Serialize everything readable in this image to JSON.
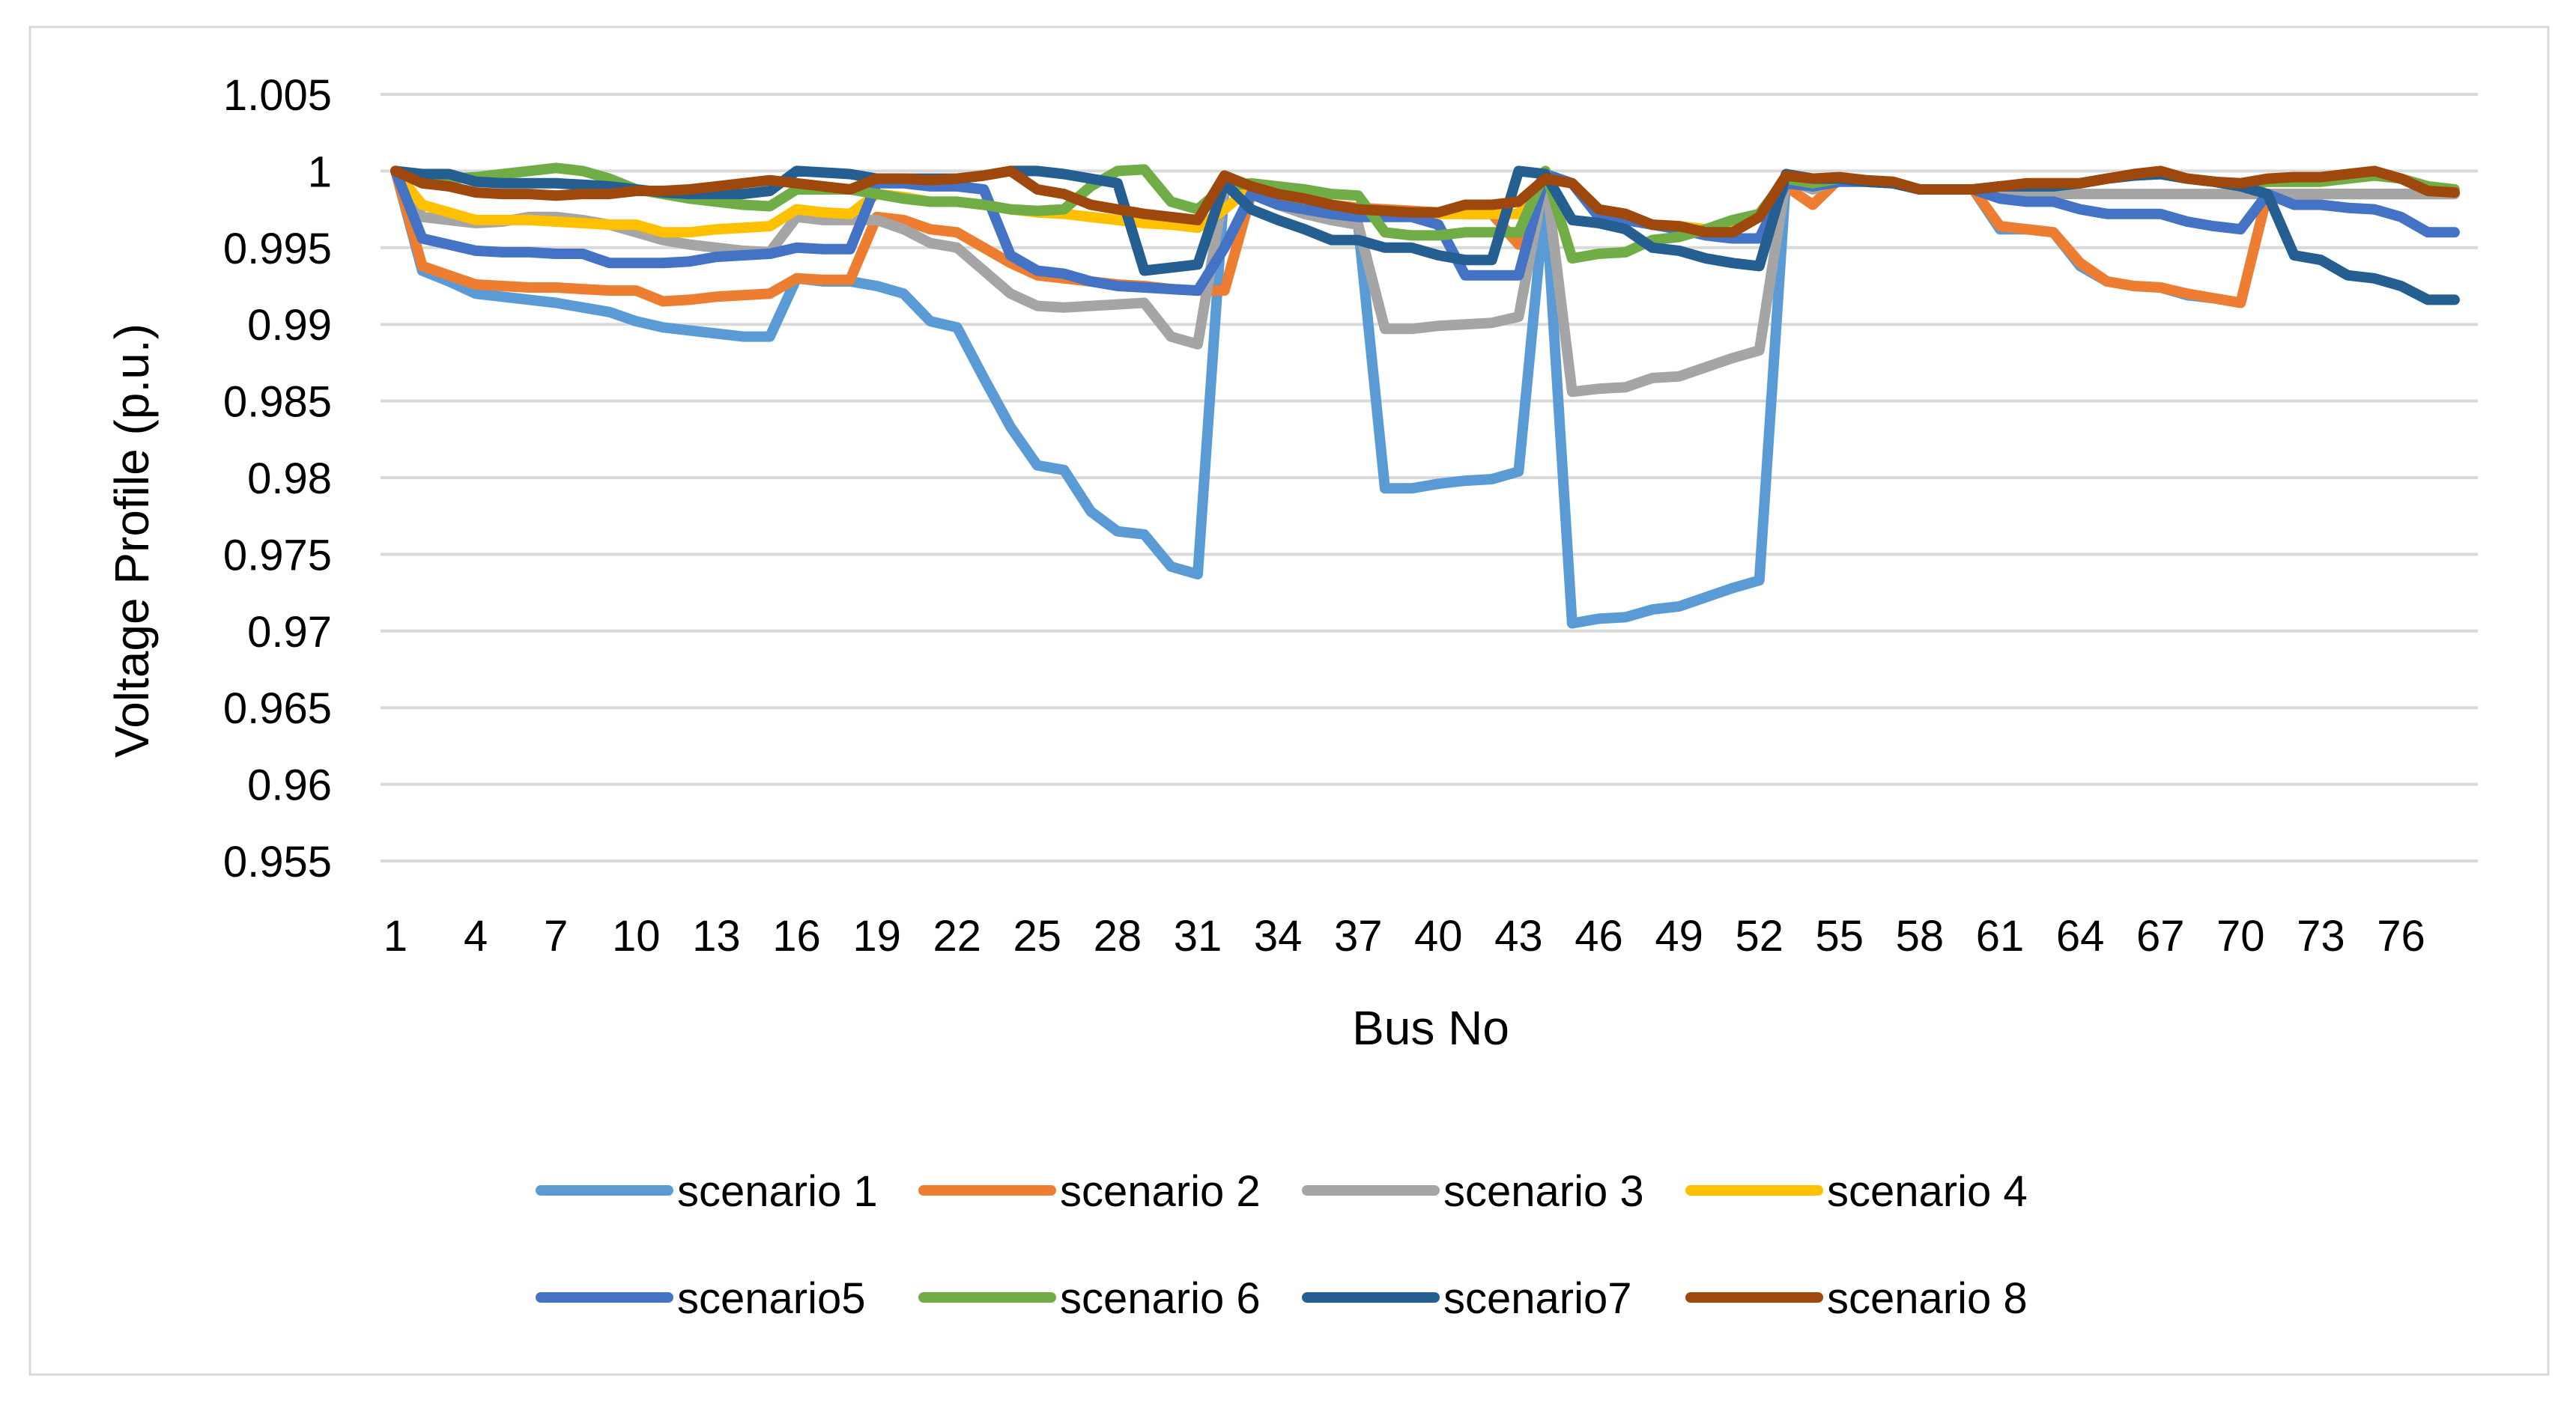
{
  "chart_data": {
    "type": "line",
    "title": "",
    "xlabel": "Bus No",
    "ylabel": "Voltage Profile (p.u.)",
    "ylim": [
      0.955,
      1.005
    ],
    "ytick_step": 0.005,
    "yticks": [
      "0.955",
      "0.96",
      "0.965",
      "0.97",
      "0.975",
      "0.98",
      "0.985",
      "0.99",
      "0.995",
      "1",
      "1.005"
    ],
    "xticks": [
      "1",
      "4",
      "7",
      "10",
      "13",
      "16",
      "19",
      "22",
      "25",
      "28",
      "31",
      "34",
      "37",
      "40",
      "43",
      "46",
      "49",
      "52",
      "55",
      "58",
      "61",
      "64",
      "67",
      "70",
      "73",
      "76"
    ],
    "x_count": 78,
    "grid": true,
    "legend_position": "bottom",
    "series": [
      {
        "name": "scenario 1",
        "color": "#5B9BD5",
        "values": [
          1.0,
          0.9935,
          0.9928,
          0.992,
          0.9918,
          0.9916,
          0.9914,
          0.9911,
          0.9908,
          0.9902,
          0.9898,
          0.9896,
          0.9894,
          0.9892,
          0.9892,
          0.993,
          0.9928,
          0.9928,
          0.9925,
          0.992,
          0.9902,
          0.9898,
          0.9865,
          0.9833,
          0.9808,
          0.9805,
          0.9778,
          0.9765,
          0.9763,
          0.9742,
          0.9737,
          0.999,
          0.9985,
          0.9978,
          0.9972,
          0.9968,
          0.9965,
          0.9793,
          0.9793,
          0.9796,
          0.9798,
          0.9799,
          0.9804,
          0.9985,
          0.9705,
          0.9708,
          0.9709,
          0.9714,
          0.9716,
          0.9722,
          0.9728,
          0.9733,
          0.9995,
          0.9988,
          0.9995,
          0.9993,
          0.9992,
          0.9988,
          0.9988,
          0.9988,
          0.9962,
          0.9962,
          0.996,
          0.9938,
          0.9928,
          0.9925,
          0.9924,
          0.9919,
          0.9917,
          0.9914,
          0.9985,
          0.9985,
          0.9985,
          0.9985,
          0.9985,
          0.9985,
          0.9985,
          0.9985
        ]
      },
      {
        "name": "scenario 2",
        "color": "#ED7D31",
        "values": [
          1.0,
          0.9938,
          0.9932,
          0.9926,
          0.9925,
          0.9924,
          0.9924,
          0.9923,
          0.9922,
          0.9922,
          0.9915,
          0.9916,
          0.9918,
          0.9919,
          0.992,
          0.993,
          0.9929,
          0.9929,
          0.997,
          0.9968,
          0.9962,
          0.996,
          0.995,
          0.994,
          0.9932,
          0.993,
          0.9928,
          0.9926,
          0.9925,
          0.9923,
          0.9922,
          0.9922,
          0.9985,
          0.9982,
          0.998,
          0.9978,
          0.9976,
          0.9975,
          0.9974,
          0.9973,
          0.9972,
          0.9972,
          0.9952,
          0.9995,
          0.9992,
          0.9975,
          0.997,
          0.9965,
          0.9964,
          0.9962,
          0.9962,
          0.997,
          0.999,
          0.9978,
          0.9995,
          0.9993,
          0.9992,
          0.9988,
          0.9988,
          0.9988,
          0.9964,
          0.9962,
          0.996,
          0.994,
          0.9928,
          0.9925,
          0.9924,
          0.992,
          0.9917,
          0.9914,
          0.9985,
          0.9985,
          0.9985,
          0.9985,
          0.9985,
          0.9985,
          0.9985,
          0.9985
        ]
      },
      {
        "name": "scenario 3",
        "color": "#A5A5A5",
        "values": [
          1.0,
          0.997,
          0.9968,
          0.9966,
          0.9967,
          0.997,
          0.997,
          0.9968,
          0.9965,
          0.996,
          0.9955,
          0.9952,
          0.995,
          0.9948,
          0.9947,
          0.997,
          0.9968,
          0.9968,
          0.9968,
          0.9962,
          0.9953,
          0.995,
          0.9935,
          0.992,
          0.9912,
          0.9911,
          0.9912,
          0.9913,
          0.9914,
          0.9892,
          0.9887,
          0.999,
          0.9985,
          0.9978,
          0.9972,
          0.9968,
          0.9965,
          0.9897,
          0.9897,
          0.9899,
          0.99,
          0.9901,
          0.9905,
          0.9998,
          0.9856,
          0.9858,
          0.9859,
          0.9865,
          0.9866,
          0.9872,
          0.9878,
          0.9883,
          0.9995,
          0.9988,
          0.9995,
          0.9993,
          0.9992,
          0.9988,
          0.9988,
          0.9988,
          0.9985,
          0.9985,
          0.9985,
          0.9985,
          0.9985,
          0.9985,
          0.9985,
          0.9985,
          0.9985,
          0.9985,
          0.9985,
          0.9985,
          0.9985,
          0.9985,
          0.9985,
          0.9985,
          0.9985,
          0.9985
        ]
      },
      {
        "name": "scenario 4",
        "color": "#FFC000",
        "values": [
          1.0,
          0.9978,
          0.9973,
          0.9968,
          0.9968,
          0.9968,
          0.9967,
          0.9966,
          0.9965,
          0.9965,
          0.996,
          0.996,
          0.9962,
          0.9963,
          0.9964,
          0.9975,
          0.9973,
          0.9972,
          0.9985,
          0.9983,
          0.998,
          0.998,
          0.9978,
          0.9975,
          0.9973,
          0.9972,
          0.997,
          0.9968,
          0.9966,
          0.9965,
          0.9963,
          0.9975,
          0.999,
          0.9985,
          0.998,
          0.9976,
          0.9975,
          0.9973,
          0.9972,
          0.9972,
          0.9972,
          0.9972,
          0.9972,
          0.9995,
          0.9992,
          0.9975,
          0.997,
          0.9965,
          0.9964,
          0.9962,
          0.9962,
          0.997,
          0.9995,
          0.9992,
          0.9995,
          0.9993,
          0.9992,
          0.9988,
          0.9988,
          0.9988,
          0.999,
          0.999,
          0.999,
          0.9992,
          0.9995,
          0.9997,
          0.9998,
          0.9995,
          0.9993,
          0.999,
          0.9993,
          0.9993,
          0.9993,
          0.9995,
          0.9997,
          0.9995,
          0.999,
          0.9988
        ]
      },
      {
        "name": "scenario5",
        "color": "#4472C4",
        "values": [
          1.0,
          0.9956,
          0.9952,
          0.9948,
          0.9947,
          0.9947,
          0.9946,
          0.9946,
          0.994,
          0.994,
          0.994,
          0.9941,
          0.9944,
          0.9945,
          0.9946,
          0.995,
          0.9949,
          0.9949,
          0.9992,
          0.9992,
          0.999,
          0.999,
          0.9988,
          0.9945,
          0.9935,
          0.9933,
          0.9928,
          0.9925,
          0.9924,
          0.9923,
          0.9922,
          0.995,
          0.9985,
          0.9978,
          0.9975,
          0.9972,
          0.997,
          0.997,
          0.997,
          0.9965,
          0.9932,
          0.9932,
          0.9932,
          0.9998,
          0.9992,
          0.997,
          0.9968,
          0.9965,
          0.9962,
          0.9958,
          0.9956,
          0.9956,
          0.9992,
          0.999,
          0.9993,
          0.9993,
          0.9992,
          0.9988,
          0.9988,
          0.9988,
          0.9982,
          0.998,
          0.998,
          0.9975,
          0.9972,
          0.9972,
          0.9972,
          0.9967,
          0.9964,
          0.9962,
          0.9985,
          0.9978,
          0.9978,
          0.9976,
          0.9975,
          0.997,
          0.996,
          0.996
        ]
      },
      {
        "name": "scenario 6",
        "color": "#70AD47",
        "values": [
          1.0,
          0.9995,
          0.9995,
          0.9996,
          0.9998,
          1.0,
          1.0002,
          1.0,
          0.9995,
          0.9988,
          0.9985,
          0.9982,
          0.998,
          0.9978,
          0.9977,
          0.9988,
          0.9988,
          0.9988,
          0.9985,
          0.9982,
          0.998,
          0.998,
          0.9978,
          0.9975,
          0.9974,
          0.9975,
          0.999,
          1.0,
          1.0001,
          0.998,
          0.9975,
          0.999,
          0.9992,
          0.999,
          0.9988,
          0.9985,
          0.9984,
          0.996,
          0.9958,
          0.9958,
          0.996,
          0.996,
          0.996,
          1.0,
          0.9943,
          0.9946,
          0.9947,
          0.9955,
          0.9957,
          0.9962,
          0.9968,
          0.9972,
          0.9995,
          0.9992,
          0.9995,
          0.9993,
          0.9992,
          0.9988,
          0.9988,
          0.9988,
          0.999,
          0.999,
          0.999,
          0.9992,
          0.9995,
          0.9997,
          0.9998,
          0.9995,
          0.9993,
          0.999,
          0.9993,
          0.9993,
          0.9993,
          0.9995,
          0.9997,
          0.9995,
          0.999,
          0.9988
        ]
      },
      {
        "name": "scenario7",
        "color": "#255E91",
        "values": [
          1.0,
          0.9998,
          0.9998,
          0.9993,
          0.9992,
          0.9992,
          0.9992,
          0.9991,
          0.999,
          0.9988,
          0.9986,
          0.9985,
          0.9985,
          0.9985,
          0.9987,
          1.0,
          0.9999,
          0.9998,
          0.9995,
          0.9995,
          0.9995,
          0.9995,
          0.9997,
          1.0,
          1.0,
          0.9998,
          0.9995,
          0.9992,
          0.9935,
          0.9937,
          0.9939,
          0.9992,
          0.9975,
          0.9968,
          0.9962,
          0.9955,
          0.9955,
          0.995,
          0.995,
          0.9945,
          0.9942,
          0.9942,
          1.0,
          0.9998,
          0.9968,
          0.9966,
          0.9962,
          0.995,
          0.9948,
          0.9943,
          0.994,
          0.9938,
          0.9998,
          0.9995,
          0.9995,
          0.9993,
          0.9992,
          0.9988,
          0.9988,
          0.9988,
          0.999,
          0.999,
          0.999,
          0.9992,
          0.9995,
          0.9997,
          0.9998,
          0.9995,
          0.9993,
          0.999,
          0.9985,
          0.9945,
          0.9942,
          0.9932,
          0.993,
          0.9925,
          0.9916,
          0.9916
        ]
      },
      {
        "name": "scenario 8",
        "color": "#9E480E",
        "values": [
          1.0,
          0.9992,
          0.999,
          0.9986,
          0.9985,
          0.9985,
          0.9984,
          0.9985,
          0.9985,
          0.9987,
          0.9987,
          0.9988,
          0.999,
          0.9992,
          0.9994,
          0.9992,
          0.999,
          0.9988,
          0.9995,
          0.9995,
          0.9994,
          0.9995,
          0.9997,
          1.0,
          0.9988,
          0.9985,
          0.9978,
          0.9975,
          0.9972,
          0.997,
          0.9968,
          0.9997,
          0.999,
          0.9985,
          0.9982,
          0.9978,
          0.9975,
          0.9974,
          0.9973,
          0.9973,
          0.9978,
          0.9978,
          0.998,
          0.9995,
          0.9992,
          0.9975,
          0.9972,
          0.9965,
          0.9964,
          0.996,
          0.996,
          0.997,
          0.9997,
          0.9995,
          0.9996,
          0.9994,
          0.9993,
          0.9988,
          0.9988,
          0.9988,
          0.999,
          0.9992,
          0.9992,
          0.9992,
          0.9995,
          0.9998,
          1.0,
          0.9995,
          0.9993,
          0.9992,
          0.9995,
          0.9996,
          0.9996,
          0.9998,
          1.0,
          0.9995,
          0.9987,
          0.9986
        ]
      }
    ]
  }
}
